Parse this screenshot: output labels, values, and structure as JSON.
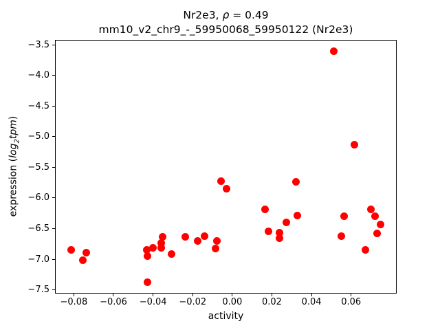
{
  "title": {
    "line1_pre": "Nr2e3, ",
    "line1_rho": "ρ",
    "line1_post": " = 0.49",
    "line2": "mm10_v2_chr9_-_59950068_59950122 (Nr2e3)"
  },
  "ylabel_parts": {
    "pre": "expression (",
    "log": "log",
    "sub": "2",
    "word": "tpm",
    "post": ")"
  },
  "chart_data": {
    "type": "scatter",
    "title": "Nr2e3, ρ = 0.49",
    "subtitle": "mm10_v2_chr9_-_59950068_59950122 (Nr2e3)",
    "xlabel": "activity",
    "ylabel": "expression (log2tpm)",
    "rho": 0.49,
    "gene": "Nr2e3",
    "marker_color": "#ff0000",
    "marker_size_px": 11,
    "grid": false,
    "legend": "none",
    "xlim": [
      -0.0895,
      0.083
    ],
    "ylim": [
      -7.56,
      -3.42
    ],
    "xticks": [
      {
        "v": -0.08,
        "label": "−0.08"
      },
      {
        "v": -0.06,
        "label": "−0.06"
      },
      {
        "v": -0.04,
        "label": "−0.04"
      },
      {
        "v": -0.02,
        "label": "−0.02"
      },
      {
        "v": 0.0,
        "label": "0.00"
      },
      {
        "v": 0.02,
        "label": "0.02"
      },
      {
        "v": 0.04,
        "label": "0.04"
      },
      {
        "v": 0.06,
        "label": "0.06"
      }
    ],
    "yticks": [
      {
        "v": -3.5,
        "label": "−3.5"
      },
      {
        "v": -4.0,
        "label": "−4.0"
      },
      {
        "v": -4.5,
        "label": "−4.5"
      },
      {
        "v": -5.0,
        "label": "−5.0"
      },
      {
        "v": -5.5,
        "label": "−5.5"
      },
      {
        "v": -6.0,
        "label": "−6.0"
      },
      {
        "v": -6.5,
        "label": "−6.5"
      },
      {
        "v": -7.0,
        "label": "−7.0"
      },
      {
        "v": -7.5,
        "label": "−7.5"
      }
    ],
    "points": [
      [
        -0.0814,
        -6.85
      ],
      [
        -0.0736,
        -6.89
      ],
      [
        -0.0755,
        -7.02
      ],
      [
        -0.0431,
        -6.85
      ],
      [
        -0.0428,
        -6.95
      ],
      [
        -0.0402,
        -6.81
      ],
      [
        -0.0353,
        -6.63
      ],
      [
        -0.036,
        -6.73
      ],
      [
        -0.0358,
        -6.81
      ],
      [
        -0.0306,
        -6.92
      ],
      [
        -0.0429,
        -7.37
      ],
      [
        -0.0239,
        -6.63
      ],
      [
        -0.0175,
        -6.7
      ],
      [
        -0.014,
        -6.62
      ],
      [
        -0.0079,
        -6.7
      ],
      [
        -0.0086,
        -6.82
      ],
      [
        -0.0058,
        -5.73
      ],
      [
        -0.003,
        -5.85
      ],
      [
        0.032,
        -5.74
      ],
      [
        0.0165,
        -6.19
      ],
      [
        0.033,
        -6.29
      ],
      [
        0.0273,
        -6.4
      ],
      [
        0.0182,
        -6.54
      ],
      [
        0.0239,
        -6.57
      ],
      [
        0.0238,
        -6.66
      ],
      [
        0.0512,
        -3.6
      ],
      [
        0.0618,
        -5.13
      ],
      [
        0.0565,
        -6.3
      ],
      [
        0.0552,
        -6.62
      ],
      [
        0.0699,
        -6.18
      ],
      [
        0.0721,
        -6.3
      ],
      [
        0.0747,
        -6.43
      ],
      [
        0.073,
        -6.58
      ],
      [
        0.0671,
        -6.85
      ]
    ]
  }
}
